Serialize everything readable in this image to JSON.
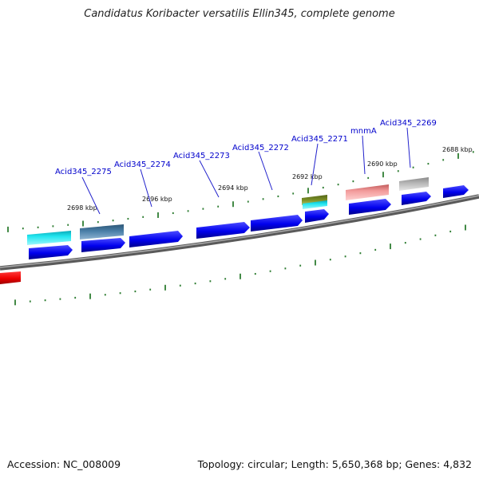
{
  "title": "Candidatus Koribacter versatilis Ellin345, complete genome",
  "footer": {
    "accession": "Accession: NC_008009",
    "summary": "Topology: circular; Length: 5,650,368 bp; Genes: 4,832"
  },
  "tick_labels": [
    "2698 kbp",
    "2696 kbp",
    "2694 kbp",
    "2692 kbp",
    "2690 kbp",
    "2688 kbp"
  ],
  "gene_labels": [
    "Acid345_2275",
    "Acid345_2274",
    "Acid345_2273",
    "Acid345_2272",
    "Acid345_2271",
    "mnmA",
    "Acid345_2269"
  ],
  "colors": {
    "gene_blue": "#0000ee",
    "backbone": "#808080",
    "tick_green": "#2e7d32",
    "label_blue": "#0000cc",
    "cyan_feature": "#22e6f0",
    "steelblue_feature": "#4a7fa8",
    "olive_feature": "#7a8f25",
    "salmon_feature": "#f29a9a",
    "gray_feature": "#b8b8b8",
    "red_feature": "#ee0000"
  }
}
